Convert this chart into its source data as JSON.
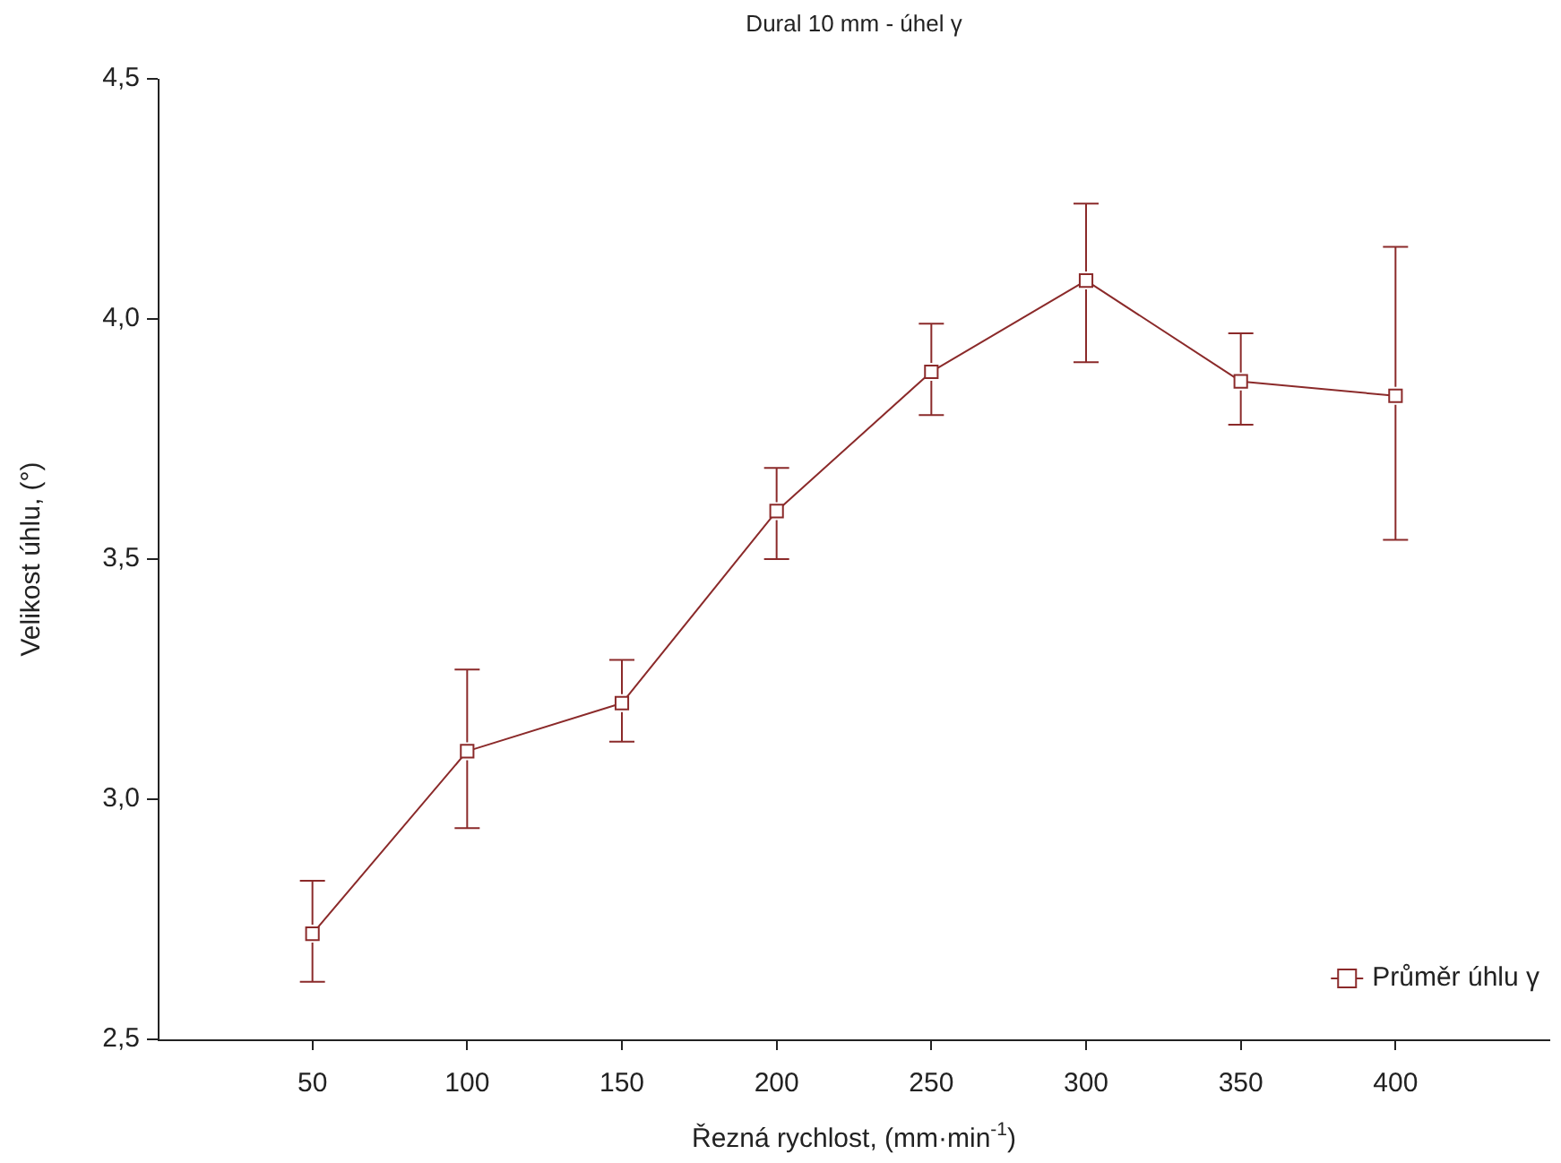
{
  "chart_data": {
    "type": "line",
    "title": "Dural 10 mm - úhel γ",
    "xlabel": "Řezná rychlost, (mm·min$^{-1}$)",
    "ylabel": "Velikost úhlu, (°)",
    "x": [
      50,
      100,
      150,
      200,
      250,
      300,
      350,
      400
    ],
    "series": [
      {
        "name": "Průměr úhlu γ",
        "color": "#8b2a2a",
        "values": [
          2.72,
          3.1,
          3.2,
          3.6,
          3.89,
          4.08,
          3.87,
          3.84
        ],
        "errors": [
          [
            2.62,
            2.83
          ],
          [
            2.94,
            3.27
          ],
          [
            3.12,
            3.29
          ],
          [
            3.5,
            3.69
          ],
          [
            3.8,
            3.99
          ],
          [
            3.91,
            4.24
          ],
          [
            3.78,
            3.97
          ],
          [
            3.54,
            4.15
          ]
        ]
      }
    ],
    "xlim": [
      0,
      450
    ],
    "xticks": [
      50,
      100,
      150,
      200,
      250,
      300,
      350,
      400
    ],
    "ylim": [
      2.5,
      4.5
    ],
    "yticks": [
      {
        "value": 2.5,
        "label": "2,5"
      },
      {
        "value": 3,
        "label": "3,0"
      },
      {
        "value": 3.5,
        "label": "3,5"
      },
      {
        "value": 4,
        "label": "4,0"
      },
      {
        "value": 4.5,
        "label": "4,5"
      }
    ],
    "grid": false,
    "legend": "bottom right",
    "marker": "square",
    "line_style": "solid"
  }
}
